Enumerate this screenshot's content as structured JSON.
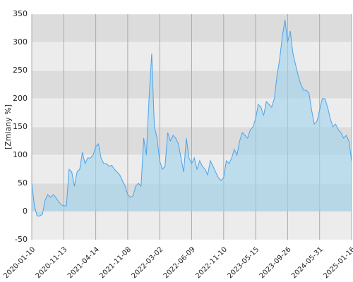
{
  "chart_data": {
    "type": "area",
    "y_label": "[Zmiany %]",
    "categories": [
      "2020-01-10",
      null,
      null,
      null,
      null,
      null,
      null,
      null,
      null,
      null,
      null,
      null,
      "2020-11-13",
      null,
      null,
      null,
      null,
      null,
      null,
      null,
      null,
      null,
      null,
      null,
      "2021-04-14",
      null,
      null,
      null,
      null,
      null,
      null,
      null,
      null,
      null,
      null,
      null,
      "2021-11-08",
      null,
      null,
      null,
      null,
      null,
      null,
      null,
      null,
      null,
      null,
      null,
      "2022-03-02",
      null,
      null,
      null,
      null,
      null,
      null,
      null,
      null,
      null,
      null,
      null,
      "2022-06-09",
      null,
      null,
      null,
      null,
      null,
      null,
      null,
      null,
      null,
      null,
      null,
      "2022-11-10",
      null,
      null,
      null,
      null,
      null,
      null,
      null,
      null,
      null,
      null,
      null,
      "2023-05-15",
      null,
      null,
      null,
      null,
      null,
      null,
      null,
      null,
      null,
      null,
      null,
      "2023-09-26",
      null,
      null,
      null,
      null,
      null,
      null,
      null,
      null,
      null,
      null,
      null,
      "2024-05-31",
      null,
      null,
      null,
      null,
      null,
      null,
      null,
      null,
      null,
      null,
      null,
      "2025-01-16"
    ],
    "values": [
      50,
      10,
      -8,
      -8,
      -5,
      20,
      30,
      25,
      30,
      25,
      18,
      12,
      10,
      10,
      75,
      70,
      45,
      70,
      75,
      105,
      85,
      95,
      95,
      100,
      115,
      120,
      95,
      85,
      85,
      80,
      82,
      75,
      70,
      65,
      55,
      45,
      30,
      25,
      28,
      45,
      50,
      45,
      130,
      100,
      200,
      280,
      150,
      130,
      90,
      75,
      80,
      140,
      125,
      135,
      130,
      120,
      95,
      70,
      130,
      95,
      85,
      95,
      75,
      90,
      80,
      75,
      65,
      90,
      80,
      70,
      60,
      55,
      60,
      90,
      85,
      95,
      110,
      100,
      125,
      140,
      135,
      130,
      145,
      150,
      165,
      190,
      185,
      170,
      195,
      190,
      185,
      200,
      240,
      270,
      310,
      340,
      300,
      320,
      280,
      260,
      240,
      225,
      215,
      215,
      210,
      180,
      155,
      160,
      180,
      200,
      200,
      185,
      165,
      150,
      155,
      145,
      140,
      130,
      135,
      125,
      90
    ],
    "color": "#4aa3ea",
    "ylim": [
      -50,
      350
    ],
    "yticks": [
      -50,
      0,
      50,
      100,
      150,
      200,
      250,
      300,
      350
    ],
    "grid": true
  }
}
